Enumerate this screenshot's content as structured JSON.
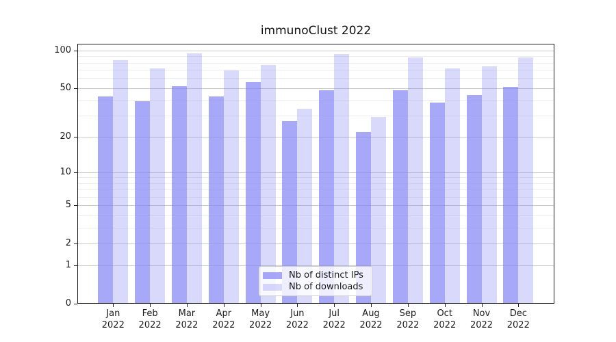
{
  "chart_data": {
    "type": "bar",
    "title": "immunoClust 2022",
    "yscale": "log1p",
    "grid": true,
    "categories": [
      {
        "month": "Jan",
        "year": "2022"
      },
      {
        "month": "Feb",
        "year": "2022"
      },
      {
        "month": "Mar",
        "year": "2022"
      },
      {
        "month": "Apr",
        "year": "2022"
      },
      {
        "month": "May",
        "year": "2022"
      },
      {
        "month": "Jun",
        "year": "2022"
      },
      {
        "month": "Jul",
        "year": "2022"
      },
      {
        "month": "Aug",
        "year": "2022"
      },
      {
        "month": "Sep",
        "year": "2022"
      },
      {
        "month": "Oct",
        "year": "2022"
      },
      {
        "month": "Nov",
        "year": "2022"
      },
      {
        "month": "Dec",
        "year": "2022"
      }
    ],
    "series": [
      {
        "name": "Nb of distinct IPs",
        "values": [
          43,
          39,
          52,
          43,
          56,
          27,
          48,
          22,
          48,
          38,
          44,
          51
        ],
        "color": "rgba(131,131,245,0.70)"
      },
      {
        "name": "Nb of downloads",
        "values": [
          84,
          72,
          95,
          69,
          77,
          34,
          94,
          29,
          88,
          72,
          75,
          88
        ],
        "color": "rgba(131,131,245,0.31)"
      }
    ],
    "yticks": [
      0,
      1,
      2,
      5,
      10,
      20,
      50,
      100
    ],
    "yticks_minor": [
      3,
      4,
      6,
      7,
      8,
      9,
      30,
      40,
      60,
      70,
      80,
      90
    ],
    "ylim": [
      0,
      113
    ],
    "xlabel": "",
    "ylabel": "",
    "legend_position": "inside lower center"
  },
  "colors": {
    "bar_base": "#8383f5",
    "grid_major": "#c9c9c9",
    "grid_minor": "#ededed",
    "spine": "#1a1a1a",
    "text": "#1a1a1a",
    "background": "#ffffff"
  }
}
